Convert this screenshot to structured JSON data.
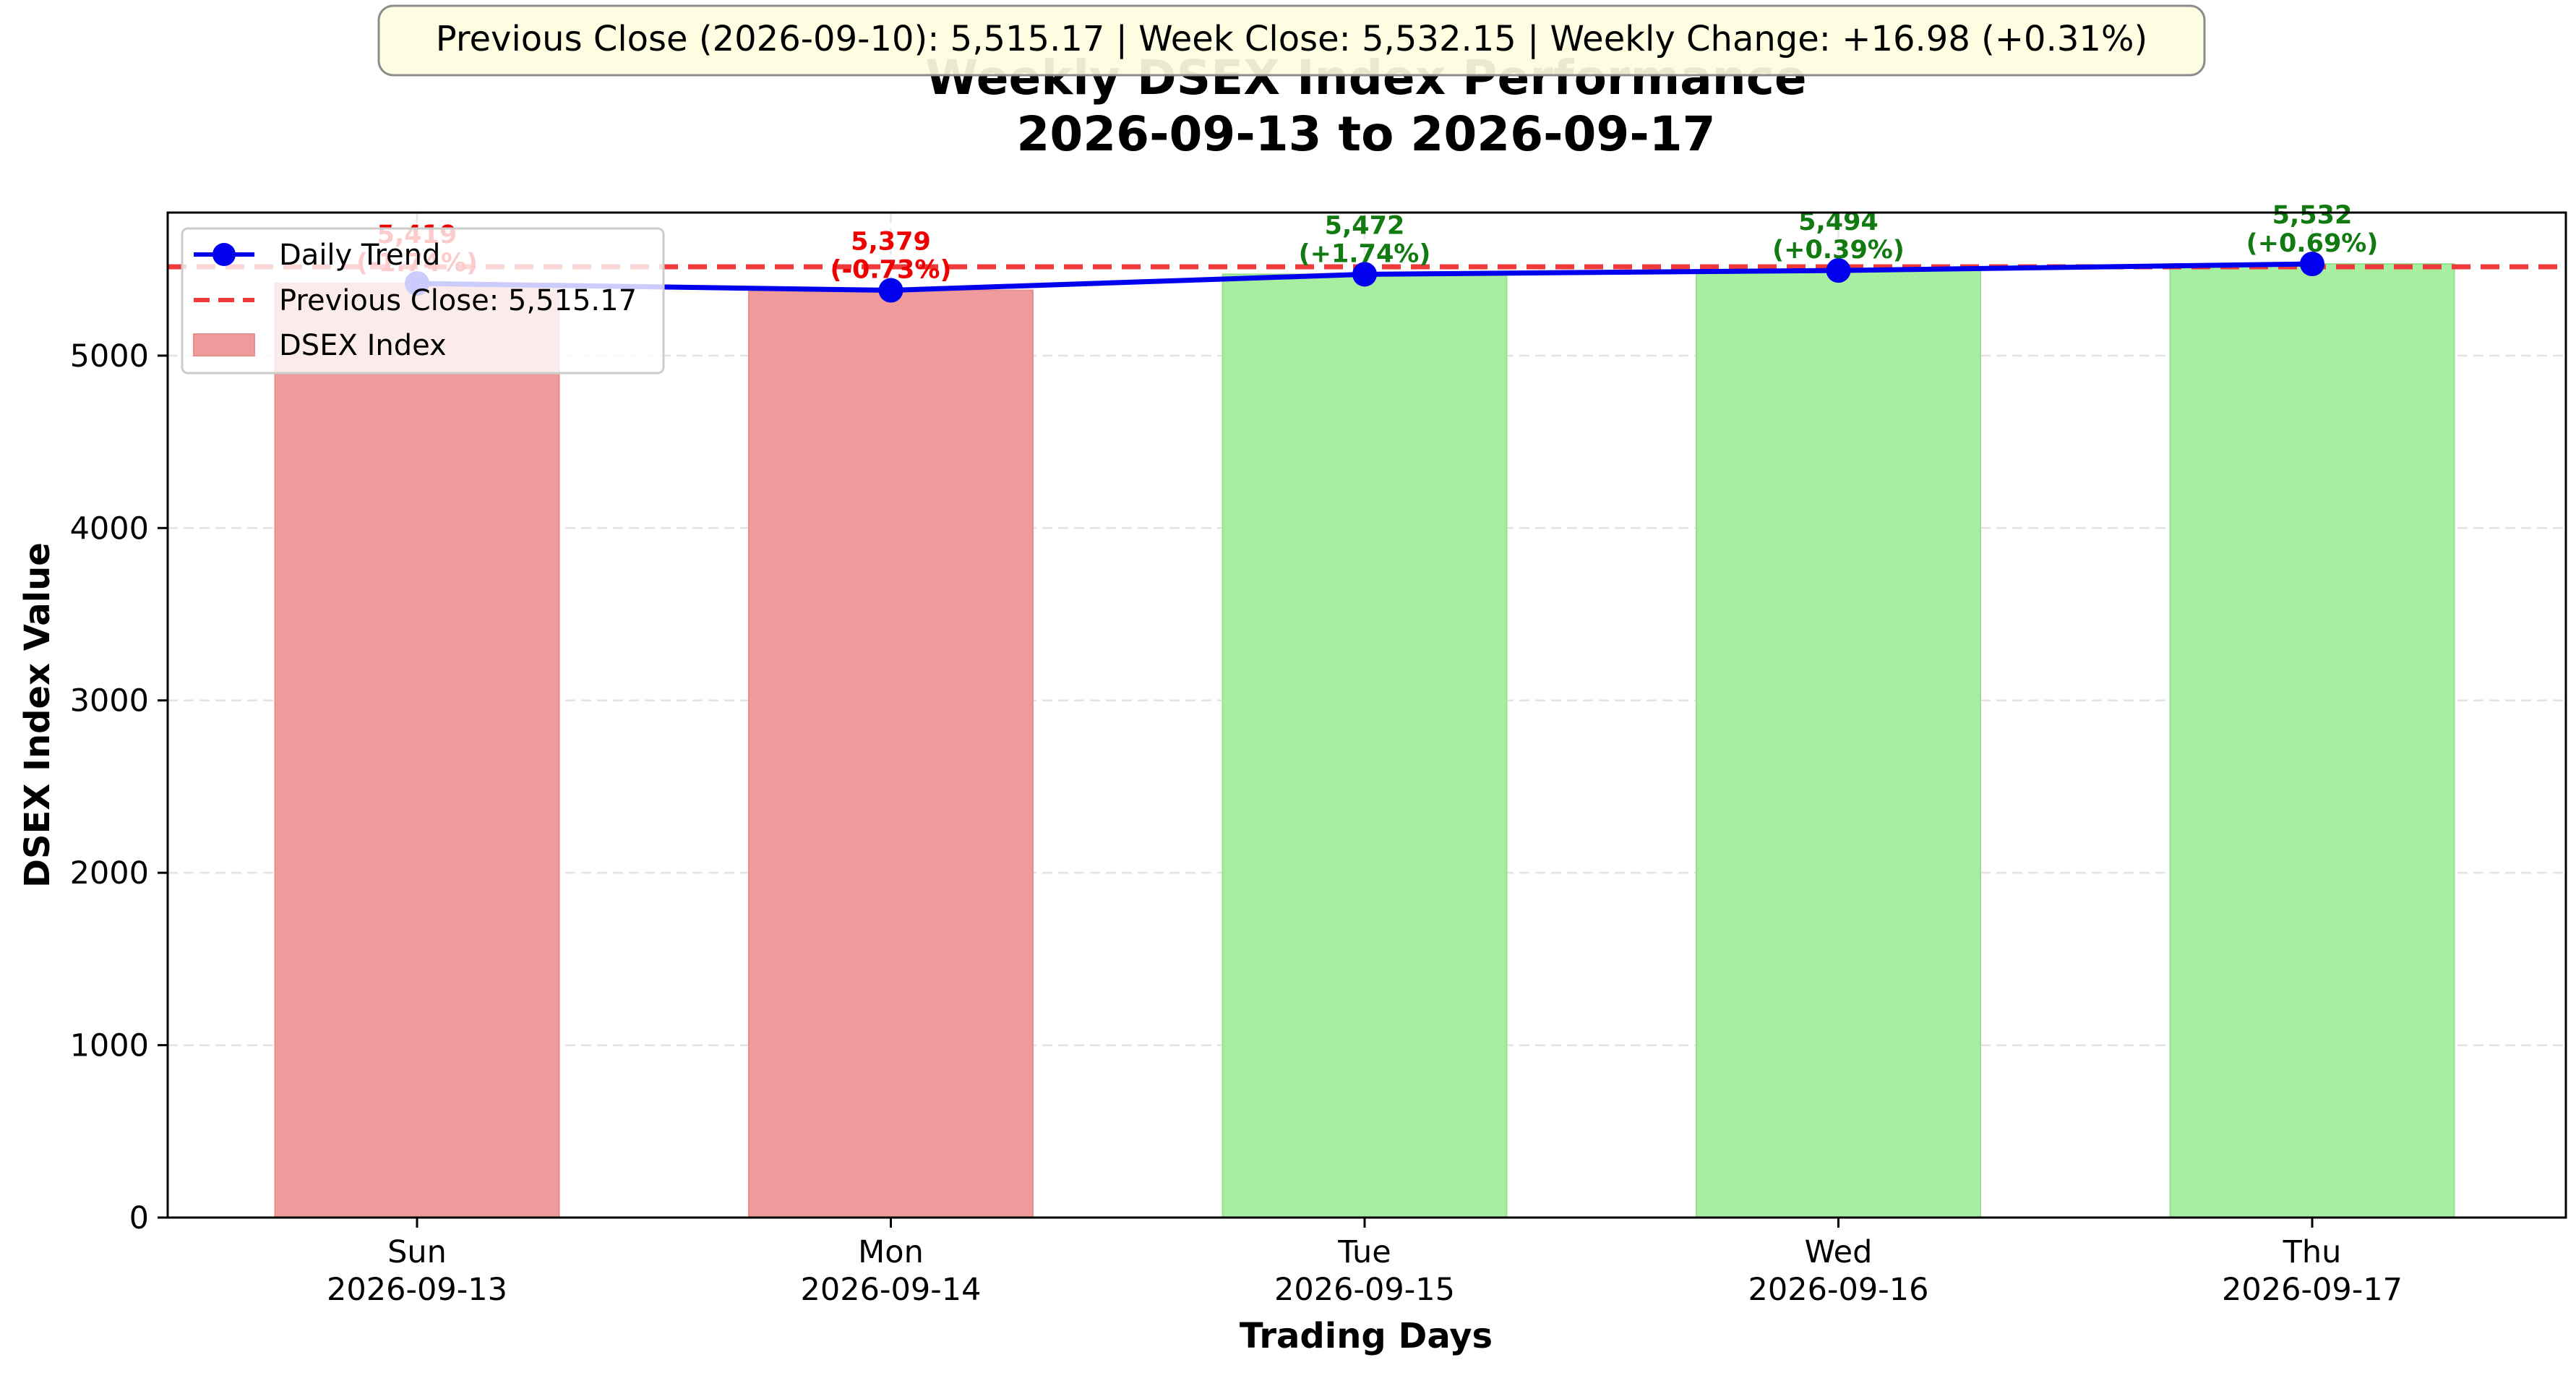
{
  "chart_data": {
    "type": "bar",
    "title": "Weekly DSEX Index Performance",
    "subtitle": "2026-09-13 to 2026-09-17",
    "banner": "Previous Close (2026-09-10): 5,515.17 | Week Close: 5,532.15 | Weekly Change: +16.98 (+0.31%)",
    "xlabel": "Trading Days",
    "ylabel": "DSEX Index Value",
    "ylim": [
      0,
      5830
    ],
    "yticks": [
      0,
      1000,
      2000,
      3000,
      4000,
      5000
    ],
    "grid": "y-dashed",
    "legend_position": "top-left",
    "categories": [
      {
        "day": "Sun",
        "date": "2026-09-13"
      },
      {
        "day": "Mon",
        "date": "2026-09-14"
      },
      {
        "day": "Tue",
        "date": "2026-09-15"
      },
      {
        "day": "Wed",
        "date": "2026-09-16"
      },
      {
        "day": "Thu",
        "date": "2026-09-17"
      }
    ],
    "values": [
      5419,
      5379,
      5472,
      5494,
      5532
    ],
    "value_labels": [
      "5,419",
      "5,379",
      "5,472",
      "5,494",
      "5,532"
    ],
    "change_labels": [
      "(-1.74%)",
      "(-0.73%)",
      "(+1.74%)",
      "(+0.39%)",
      "(+0.69%)"
    ],
    "direction": [
      "down",
      "down",
      "up",
      "up",
      "up"
    ],
    "previous_close": 5515.17,
    "series": [
      {
        "name": "Daily Trend",
        "type": "line",
        "color": "#0000ee"
      },
      {
        "name": "Previous Close: 5,515.17",
        "type": "hline",
        "color": "#ee3333"
      },
      {
        "name": "DSEX Index",
        "type": "bar"
      }
    ],
    "colors": {
      "bar_down": "#f09b9b",
      "bar_up": "#a7eea1",
      "label_down": "#ee0000",
      "label_up": "#117a11",
      "line": "#0000ee",
      "prev_close": "#ee3a3a",
      "banner_bg": "#fdfde0",
      "banner_border": "#8c8c8c"
    }
  }
}
